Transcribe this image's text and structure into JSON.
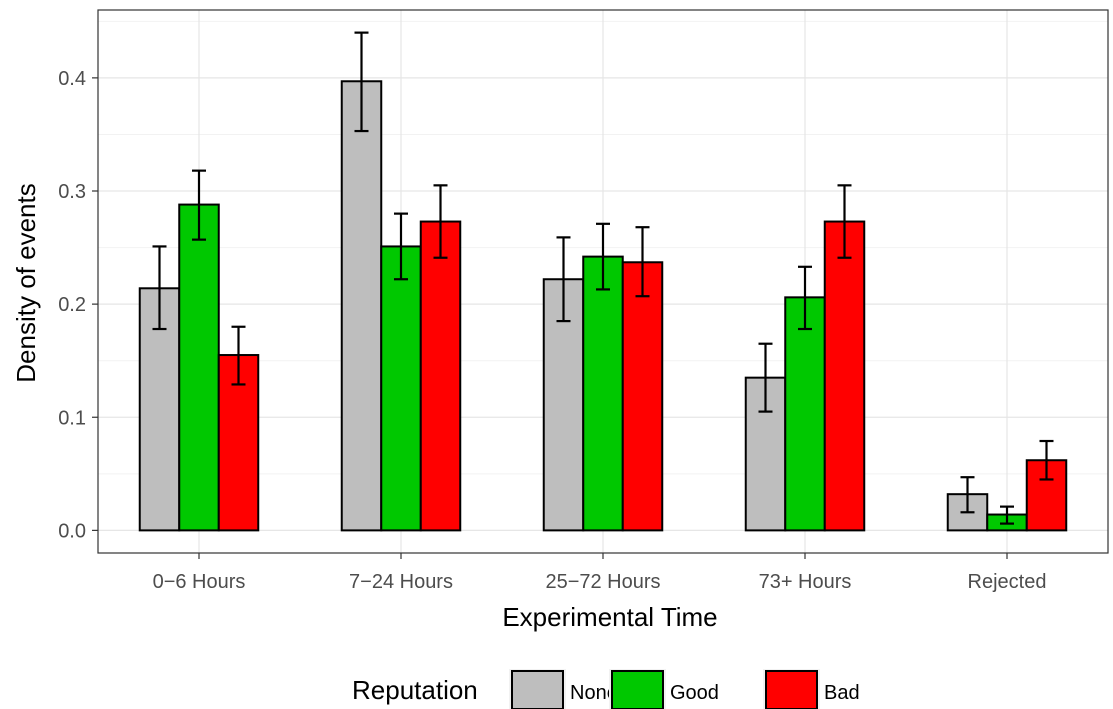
{
  "chart_data": {
    "type": "bar",
    "title": "",
    "xlabel": "Experimental Time",
    "ylabel": "Density of events",
    "categories": [
      "0−6 Hours",
      "7−24 Hours",
      "25−72 Hours",
      "73+ Hours",
      "Rejected"
    ],
    "ylim": [
      -0.02,
      0.46
    ],
    "yticks": [
      0.0,
      0.1,
      0.2,
      0.3,
      0.4
    ],
    "ytick_labels": [
      "0.0",
      "0.1",
      "0.2",
      "0.3",
      "0.4"
    ],
    "grid": true,
    "error_bars": true,
    "legend": {
      "title": "Reputation",
      "position": "bottom"
    },
    "series": [
      {
        "name": "None",
        "color": "#bebebe",
        "values": [
          0.214,
          0.397,
          0.222,
          0.135,
          0.032
        ],
        "err_low": [
          0.178,
          0.353,
          0.185,
          0.105,
          0.016
        ],
        "err_high": [
          0.251,
          0.44,
          0.259,
          0.165,
          0.047
        ]
      },
      {
        "name": "Good",
        "color": "#00c800",
        "values": [
          0.288,
          0.251,
          0.242,
          0.206,
          0.014
        ],
        "err_low": [
          0.257,
          0.222,
          0.213,
          0.178,
          0.006
        ],
        "err_high": [
          0.318,
          0.28,
          0.271,
          0.233,
          0.021
        ]
      },
      {
        "name": "Bad",
        "color": "#ff0000",
        "values": [
          0.155,
          0.273,
          0.237,
          0.273,
          0.062
        ],
        "err_low": [
          0.129,
          0.241,
          0.207,
          0.241,
          0.045
        ],
        "err_high": [
          0.18,
          0.305,
          0.268,
          0.305,
          0.079
        ]
      }
    ]
  }
}
